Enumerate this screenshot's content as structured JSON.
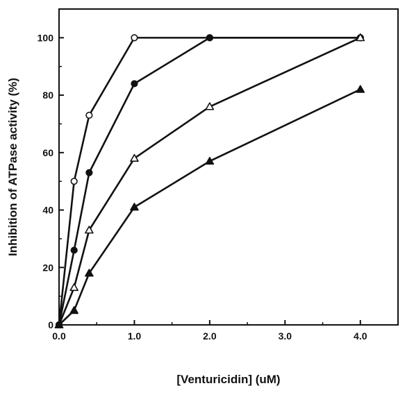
{
  "chart_data": {
    "type": "line",
    "title": "",
    "xlabel": "[Venturicidin] (uM)",
    "ylabel": "Inhibition of ATPase activity (%)",
    "xlim": [
      0,
      4.5
    ],
    "ylim": [
      0,
      110
    ],
    "x_ticks": [
      0.0,
      1.0,
      2.0,
      3.0,
      4.0
    ],
    "x_tick_labels": [
      "0.0",
      "1.0",
      "2.0",
      "3.0",
      "4.0"
    ],
    "y_ticks": [
      0,
      20,
      40,
      60,
      80,
      100
    ],
    "y_tick_labels": [
      "0",
      "20",
      "40",
      "60",
      "80",
      "100"
    ],
    "grid": false,
    "legend": "none",
    "series": [
      {
        "marker": "open-circle",
        "x": [
          0,
          0.2,
          0.4,
          1.0,
          2.0,
          4.0
        ],
        "values": [
          0,
          50,
          73,
          100,
          100,
          100
        ]
      },
      {
        "marker": "filled-circle",
        "x": [
          0,
          0.2,
          0.4,
          1.0,
          2.0,
          4.0
        ],
        "values": [
          0,
          26,
          53,
          84,
          100,
          100
        ]
      },
      {
        "marker": "open-triangle",
        "x": [
          0,
          0.2,
          0.4,
          1.0,
          2.0,
          4.0
        ],
        "values": [
          0,
          13,
          33,
          58,
          76,
          100
        ]
      },
      {
        "marker": "filled-triangle",
        "x": [
          0,
          0.2,
          0.4,
          1.0,
          2.0,
          4.0
        ],
        "values": [
          0,
          5,
          18,
          41,
          57,
          82
        ]
      }
    ]
  }
}
